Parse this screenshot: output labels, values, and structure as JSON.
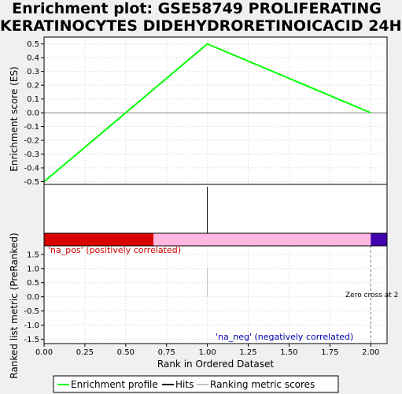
{
  "chart_data": {
    "type": "line",
    "title_lines": [
      "Enrichment plot: GSE58749 PROLIFERATING",
      "KERATINOCYTES DIDEHYDRORETINOICACID 24H"
    ],
    "xlabel": "Rank in Ordered Dataset",
    "es_panel": {
      "ylabel": "Enrichment score (ES)",
      "ylim": [
        -0.52,
        0.55
      ],
      "yticks": [
        0.5,
        0.4,
        0.3,
        0.2,
        0.1,
        0.0,
        -0.1,
        -0.2,
        -0.3,
        -0.4,
        -0.5
      ],
      "ytick_labels": [
        "0.5",
        "0.4",
        "0.3",
        "0.2",
        "0.1",
        "0.0",
        "-0.1",
        "-0.2",
        "-0.3",
        "-0.4",
        "-0.5"
      ],
      "series": [
        {
          "name": "Enrichment profile",
          "color": "#00ff00",
          "x": [
            0,
            1,
            2
          ],
          "y": [
            -0.5,
            0.5,
            0.0
          ]
        }
      ]
    },
    "hits": {
      "x": [
        1
      ],
      "color": "#000000"
    },
    "color_bar": [
      {
        "from": 0,
        "to": 0.67,
        "color": "#d90000"
      },
      {
        "from": 0.67,
        "to": 2.0,
        "color": "#ffb6e0"
      },
      {
        "from": 2.0,
        "to": 2.1,
        "color": "#4000b0"
      }
    ],
    "rank_panel": {
      "ylabel": "Ranked list metric (PreRanked)",
      "ylim": [
        -1.65,
        1.8
      ],
      "yticks": [
        1.5,
        1.0,
        0.5,
        0.0,
        -0.5,
        -1.0,
        -1.5
      ],
      "ytick_labels": [
        "1.5",
        "1.0",
        "0.5",
        "0.0",
        "-0.5",
        "-1.0",
        "-1.5"
      ],
      "bars": [
        {
          "x": 1,
          "y": 1.0
        }
      ],
      "zero_cross_x": 2.0,
      "zero_cross_label": "Zero cross at 2",
      "pos_label": "'na_pos' (positively correlated)",
      "neg_label": "'na_neg' (negatively correlated)"
    },
    "xlim": [
      0,
      2.1
    ],
    "xticks": [
      0,
      0.25,
      0.5,
      0.75,
      1.0,
      1.25,
      1.5,
      1.75,
      2.0
    ],
    "xtick_labels": [
      "0.00",
      "0.25",
      "0.50",
      "0.75",
      "1.00",
      "1.25",
      "1.50",
      "1.75",
      "2.00"
    ],
    "grid": true,
    "legend": {
      "placement": "bottom",
      "items": [
        {
          "label": "Enrichment profile",
          "color": "#00ff00"
        },
        {
          "label": "Hits",
          "color": "#000000"
        },
        {
          "label": "Ranking metric scores",
          "color": "#c0c0c0"
        }
      ]
    }
  }
}
